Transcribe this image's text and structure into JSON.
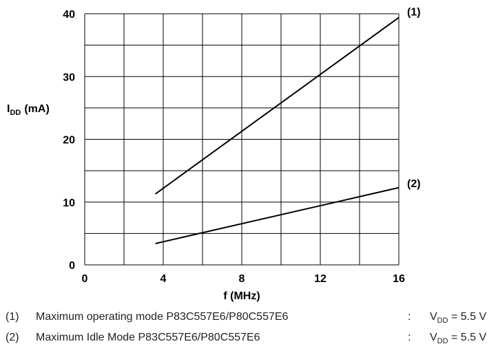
{
  "chart_data": {
    "type": "line",
    "xlabel": "f (MHz)",
    "ylabel_main": "I",
    "ylabel_sub": "DD",
    "ylabel_unit": "(mA)",
    "xlim": [
      0,
      16
    ],
    "ylim": [
      0,
      40
    ],
    "x_ticks": [
      0,
      4,
      8,
      12,
      16
    ],
    "y_ticks": [
      0,
      10,
      20,
      30,
      40
    ],
    "x_gridlines": [
      0,
      2,
      4,
      6,
      8,
      10,
      12,
      14,
      16
    ],
    "y_gridlines": [
      0,
      5,
      10,
      15,
      20,
      25,
      30,
      35,
      40
    ],
    "grid": true,
    "series": [
      {
        "name": "(1)",
        "x": [
          3.6,
          16
        ],
        "y": [
          11.3,
          39.4
        ]
      },
      {
        "name": "(2)",
        "x": [
          3.6,
          16
        ],
        "y": [
          3.4,
          12.3
        ]
      }
    ]
  },
  "notes": [
    {
      "num": "(1)",
      "desc": "Maximum operating mode P83C557E6/P80C557E6",
      "colon": ":",
      "cond_main": "V",
      "cond_sub": "DD",
      "cond_rest": " = 5.5 V"
    },
    {
      "num": "(2)",
      "desc": "Maximum Idle Mode P83C557E6/P80C557E6",
      "colon": ":",
      "cond_main": "V",
      "cond_sub": "DD",
      "cond_rest": " = 5.5 V"
    }
  ]
}
